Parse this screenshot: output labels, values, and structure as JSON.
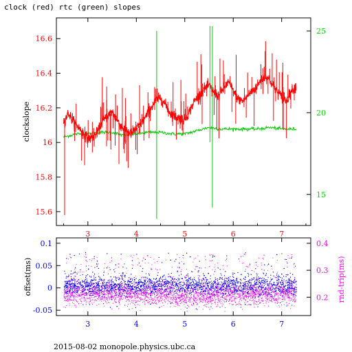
{
  "figure": {
    "title": "clock (red) rtc (green) slopes",
    "footer": "2015-08-02  monopole.physics.ubc.ca"
  },
  "chart_data": [
    {
      "type": "line",
      "ylabel": "clockslope",
      "xlim": [
        2.35,
        7.6
      ],
      "ylim": [
        15.52,
        16.72
      ],
      "xticks": [
        3,
        4,
        5,
        6,
        7
      ],
      "yticks": [
        15.6,
        15.8,
        16,
        16.2,
        16.4,
        16.6
      ],
      "ytick_labels": [
        "15.6",
        "15.8",
        "16",
        "16.2",
        "16.4",
        "16.6"
      ],
      "y2lim": [
        13.1,
        25.8
      ],
      "y2ticks": [
        15,
        20,
        25
      ],
      "colors": {
        "clock": "#ff0000",
        "rtc": "#00dd00",
        "axis_left": "#ff0000",
        "axis_right": "#00dd00"
      },
      "series": [
        {
          "name": "clock",
          "axis": "left",
          "x": [
            2.5,
            2.6,
            2.7,
            2.8,
            2.9,
            3.0,
            3.1,
            3.2,
            3.3,
            3.4,
            3.5,
            3.6,
            3.7,
            3.8,
            3.9,
            4.0,
            4.1,
            4.2,
            4.3,
            4.4,
            4.5,
            4.6,
            4.7,
            4.8,
            4.9,
            5.0,
            5.1,
            5.2,
            5.3,
            5.4,
            5.5,
            5.6,
            5.7,
            5.8,
            5.9,
            6.0,
            6.1,
            6.2,
            6.3,
            6.4,
            6.5,
            6.6,
            6.7,
            6.8,
            6.9,
            7.0,
            7.1,
            7.2,
            7.3
          ],
          "y": [
            16.12,
            16.17,
            16.12,
            16.09,
            16.06,
            16.02,
            16.03,
            16.06,
            16.12,
            16.15,
            16.18,
            16.13,
            16.09,
            16.07,
            16.05,
            16.08,
            16.11,
            16.15,
            16.2,
            16.24,
            16.26,
            16.22,
            16.17,
            16.15,
            16.14,
            16.13,
            16.18,
            16.24,
            16.27,
            16.31,
            16.33,
            16.29,
            16.27,
            16.31,
            16.35,
            16.3,
            16.25,
            16.24,
            16.27,
            16.3,
            16.33,
            16.37,
            16.38,
            16.34,
            16.3,
            16.26,
            16.24,
            16.3,
            16.33
          ]
        },
        {
          "name": "rtc",
          "axis": "right",
          "x": [
            2.5,
            2.75,
            3.0,
            3.25,
            3.5,
            3.75,
            4.0,
            4.25,
            4.5,
            4.75,
            5.0,
            5.25,
            5.5,
            5.75,
            6.0,
            6.25,
            6.5,
            6.75,
            7.0,
            7.3
          ],
          "y": [
            18.5,
            18.7,
            18.7,
            18.8,
            18.8,
            18.6,
            18.7,
            18.8,
            18.8,
            18.7,
            18.7,
            18.9,
            19.1,
            19.0,
            19.0,
            19.0,
            19.0,
            19.1,
            19.0,
            19.0
          ]
        }
      ]
    },
    {
      "type": "scatter",
      "ylabel": "offset(ms)",
      "y2label": "rnd-trip(ms)",
      "xlim": [
        2.35,
        7.6
      ],
      "ylim": [
        -0.062,
        0.112
      ],
      "xticks": [
        3,
        4,
        5,
        6,
        7
      ],
      "yticks": [
        -0.05,
        0,
        0.05,
        0.1
      ],
      "ytick_labels": [
        "-0.05",
        "0",
        "0.05",
        "0.1"
      ],
      "y2lim": [
        0.132,
        0.42
      ],
      "y2ticks": [
        0.2,
        0.3,
        0.4
      ],
      "colors": {
        "offset": "#0000ff",
        "rnd_trip": "#ff00ff",
        "axis_left": "#0000ff",
        "axis_right": "#ff00ff"
      },
      "series": [
        {
          "name": "offset",
          "axis": "left",
          "x_range": [
            2.5,
            7.3
          ],
          "center": 0.005,
          "spread": 0.015
        },
        {
          "name": "rnd-trip",
          "axis": "right",
          "x_range": [
            2.5,
            7.3
          ],
          "center": 0.22,
          "spread": 0.02
        }
      ]
    }
  ]
}
